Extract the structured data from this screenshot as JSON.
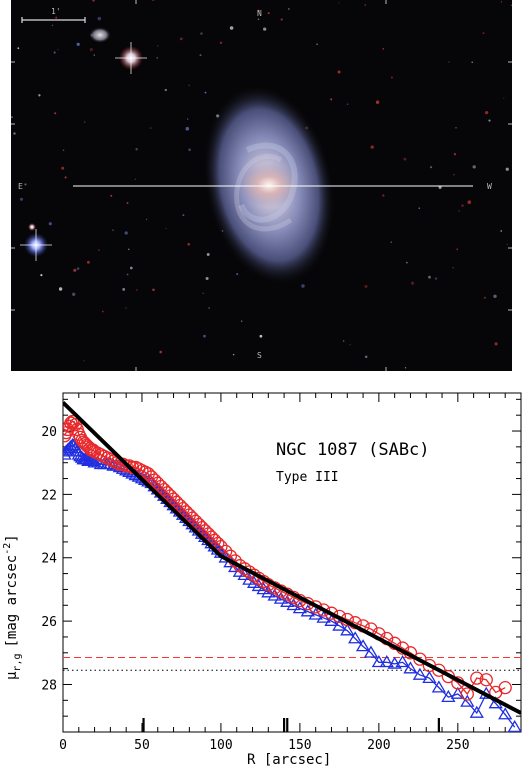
{
  "image": {
    "scale_bar_label": "1'",
    "compass": {
      "north": "N",
      "south": "S",
      "east": "E",
      "west": "W"
    },
    "colors": {
      "background": "#060608",
      "galaxy_core": "#f2e6e6",
      "galaxy_halo": "#6c75a8",
      "cut_line": "#ffffff"
    }
  },
  "chart_data": {
    "type": "scatter",
    "title": "NGC 1087 (SABc)",
    "subtitle": "Type III",
    "xlabel": "R [arcsec]",
    "ylabel_main": "μ",
    "ylabel_sub": "r,g",
    "ylabel_units": "[mag arcsec",
    "ylabel_exp": "-2",
    "ylabel_close": "]",
    "xlim": [
      0,
      290
    ],
    "ylim": [
      29.5,
      18.8
    ],
    "y_inverted": true,
    "xticks": [
      0,
      50,
      100,
      150,
      200,
      250
    ],
    "yticks": [
      20,
      22,
      24,
      26,
      28
    ],
    "grid": false,
    "break_markers_x": [
      51,
      140,
      142,
      238
    ],
    "series": [
      {
        "marker": "circle",
        "color": "#e8282a",
        "x": [
          1,
          2,
          3,
          4,
          5,
          6,
          7,
          8,
          9,
          10,
          11,
          12,
          13,
          14,
          15,
          16,
          17,
          18,
          19,
          20,
          22,
          24,
          26,
          28,
          30,
          32,
          34,
          36,
          38,
          40,
          42,
          44,
          46,
          48,
          50,
          52,
          54,
          56,
          58,
          60,
          62,
          64,
          66,
          68,
          70,
          72,
          74,
          76,
          78,
          80,
          82,
          84,
          86,
          88,
          90,
          92,
          94,
          96,
          98,
          100,
          103,
          106,
          109,
          112,
          115,
          118,
          121,
          124,
          127,
          130,
          134,
          138,
          142,
          146,
          150,
          155,
          160,
          165,
          170,
          175,
          180,
          185,
          190,
          195,
          200,
          205,
          210,
          215,
          220,
          226,
          232,
          238,
          244,
          250,
          256,
          262,
          268,
          274,
          280
        ],
        "y": [
          20.15,
          20.05,
          19.95,
          19.85,
          19.75,
          19.7,
          19.7,
          19.8,
          19.95,
          20.1,
          20.2,
          20.3,
          20.35,
          20.4,
          20.45,
          20.5,
          20.55,
          20.6,
          20.6,
          20.65,
          20.7,
          20.75,
          20.8,
          20.85,
          20.9,
          20.95,
          21.0,
          21.05,
          21.05,
          21.1,
          21.1,
          21.15,
          21.15,
          21.2,
          21.25,
          21.3,
          21.35,
          21.45,
          21.55,
          21.65,
          21.75,
          21.85,
          21.95,
          22.05,
          22.15,
          22.25,
          22.35,
          22.45,
          22.55,
          22.65,
          22.75,
          22.85,
          22.95,
          23.05,
          23.15,
          23.25,
          23.35,
          23.45,
          23.55,
          23.65,
          23.8,
          23.95,
          24.1,
          24.25,
          24.35,
          24.45,
          24.55,
          24.65,
          24.75,
          24.85,
          24.95,
          25.05,
          25.15,
          25.25,
          25.35,
          25.45,
          25.55,
          25.65,
          25.75,
          25.85,
          25.95,
          26.05,
          26.15,
          26.25,
          26.4,
          26.55,
          26.7,
          26.85,
          27.0,
          27.2,
          27.4,
          27.55,
          27.75,
          27.95,
          28.3,
          27.8,
          27.85,
          28.25,
          28.1
        ]
      },
      {
        "marker": "triangle",
        "color": "#1f2ee0",
        "x": [
          1,
          2,
          3,
          4,
          5,
          6,
          7,
          8,
          9,
          10,
          11,
          12,
          13,
          14,
          15,
          16,
          17,
          18,
          19,
          20,
          22,
          24,
          26,
          28,
          30,
          32,
          34,
          36,
          38,
          40,
          42,
          44,
          46,
          48,
          50,
          52,
          54,
          56,
          58,
          60,
          62,
          64,
          66,
          68,
          70,
          72,
          74,
          76,
          78,
          80,
          82,
          84,
          86,
          88,
          90,
          92,
          94,
          96,
          98,
          100,
          103,
          106,
          109,
          112,
          115,
          118,
          121,
          124,
          127,
          130,
          134,
          138,
          142,
          146,
          150,
          155,
          160,
          165,
          170,
          175,
          180,
          185,
          190,
          195,
          200,
          205,
          210,
          215,
          220,
          226,
          232,
          238,
          244,
          250,
          256,
          262,
          268,
          274,
          280,
          286
        ],
        "y": [
          20.75,
          20.65,
          20.6,
          20.55,
          20.5,
          20.45,
          20.45,
          20.55,
          20.65,
          20.75,
          20.8,
          20.85,
          20.9,
          20.9,
          20.9,
          20.95,
          20.95,
          20.95,
          20.95,
          21.0,
          21.0,
          21.05,
          21.05,
          21.05,
          21.05,
          21.1,
          21.1,
          21.15,
          21.2,
          21.25,
          21.3,
          21.35,
          21.4,
          21.45,
          21.5,
          21.55,
          21.6,
          21.65,
          21.75,
          21.85,
          21.95,
          22.05,
          22.15,
          22.25,
          22.35,
          22.45,
          22.55,
          22.65,
          22.75,
          22.85,
          22.95,
          23.05,
          23.15,
          23.25,
          23.35,
          23.45,
          23.55,
          23.65,
          23.75,
          23.85,
          24.0,
          24.15,
          24.3,
          24.45,
          24.55,
          24.7,
          24.8,
          24.9,
          25.0,
          25.1,
          25.2,
          25.3,
          25.4,
          25.5,
          25.6,
          25.7,
          25.8,
          25.9,
          26.0,
          26.15,
          26.3,
          26.55,
          26.8,
          27.0,
          27.3,
          27.3,
          27.35,
          27.3,
          27.5,
          27.7,
          27.8,
          28.1,
          28.4,
          28.3,
          28.55,
          28.9,
          28.3,
          28.6,
          28.95,
          29.35
        ]
      }
    ],
    "fit_line": {
      "color": "#000000",
      "x": [
        0,
        100,
        290
      ],
      "y": [
        19.1,
        23.95,
        28.9
      ]
    },
    "reference_lines": [
      {
        "y": 27.15,
        "style": "dashed",
        "color": "#ff3333"
      },
      {
        "y": 27.55,
        "style": "dotted",
        "color": "#000000"
      }
    ]
  }
}
